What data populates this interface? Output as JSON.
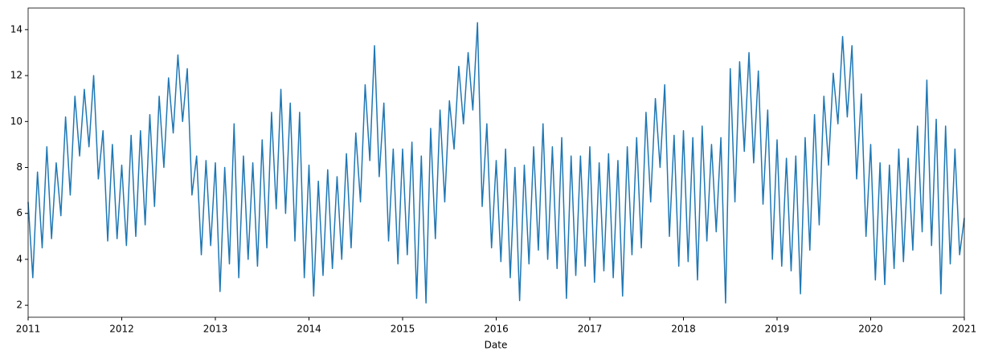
{
  "chart_data": {
    "type": "line",
    "x_label": "Date",
    "color": "#1f77b4",
    "x": [
      2011,
      2011.05,
      2011.1,
      2011.15,
      2011.2,
      2011.25,
      2011.3,
      2011.35,
      2011.4,
      2011.45,
      2011.5,
      2011.55,
      2011.6,
      2011.65,
      2011.7,
      2011.75,
      2011.8,
      2011.85,
      2011.9,
      2011.95,
      2012,
      2012.05,
      2012.1,
      2012.15,
      2012.2,
      2012.25,
      2012.3,
      2012.35,
      2012.4,
      2012.45,
      2012.5,
      2012.55,
      2012.6,
      2012.65,
      2012.7,
      2012.75,
      2012.8,
      2012.85,
      2012.9,
      2012.95,
      2013,
      2013.05,
      2013.1,
      2013.15,
      2013.2,
      2013.25,
      2013.3,
      2013.35,
      2013.4,
      2013.45,
      2013.5,
      2013.55,
      2013.6,
      2013.65,
      2013.7,
      2013.75,
      2013.8,
      2013.85,
      2013.9,
      2013.95,
      2014,
      2014.05,
      2014.1,
      2014.15,
      2014.2,
      2014.25,
      2014.3,
      2014.35,
      2014.4,
      2014.45,
      2014.5,
      2014.55,
      2014.6,
      2014.65,
      2014.7,
      2014.75,
      2014.8,
      2014.85,
      2014.9,
      2014.95,
      2015,
      2015.05,
      2015.1,
      2015.15,
      2015.2,
      2015.25,
      2015.3,
      2015.35,
      2015.4,
      2015.45,
      2015.5,
      2015.55,
      2015.6,
      2015.65,
      2015.7,
      2015.75,
      2015.8,
      2015.85,
      2015.9,
      2015.95,
      2016,
      2016.05,
      2016.1,
      2016.15,
      2016.2,
      2016.25,
      2016.3,
      2016.35,
      2016.4,
      2016.45,
      2016.5,
      2016.55,
      2016.6,
      2016.65,
      2016.7,
      2016.75,
      2016.8,
      2016.85,
      2016.9,
      2016.95,
      2017,
      2017.05,
      2017.1,
      2017.15,
      2017.2,
      2017.25,
      2017.3,
      2017.35,
      2017.4,
      2017.45,
      2017.5,
      2017.55,
      2017.6,
      2017.65,
      2017.7,
      2017.75,
      2017.8,
      2017.85,
      2017.9,
      2017.95,
      2018,
      2018.05,
      2018.1,
      2018.15,
      2018.2,
      2018.25,
      2018.3,
      2018.35,
      2018.4,
      2018.45,
      2018.5,
      2018.55,
      2018.6,
      2018.65,
      2018.7,
      2018.75,
      2018.8,
      2018.85,
      2018.9,
      2018.95,
      2019,
      2019.05,
      2019.1,
      2019.15,
      2019.2,
      2019.25,
      2019.3,
      2019.35,
      2019.4,
      2019.45,
      2019.5,
      2019.55,
      2019.6,
      2019.65,
      2019.7,
      2019.75,
      2019.8,
      2019.85,
      2019.9,
      2019.95,
      2020,
      2020.05,
      2020.1,
      2020.15,
      2020.2,
      2020.25,
      2020.3,
      2020.35,
      2020.4,
      2020.45,
      2020.5,
      2020.55,
      2020.6,
      2020.65,
      2020.7,
      2020.75,
      2020.8,
      2020.85,
      2020.9,
      2020.95,
      2021
    ],
    "values": [
      6.5,
      3.2,
      7.8,
      4.5,
      8.9,
      4.9,
      8.2,
      5.9,
      10.2,
      6.8,
      11.1,
      8.5,
      11.4,
      8.9,
      12.0,
      7.5,
      9.6,
      4.8,
      9.0,
      4.9,
      8.1,
      4.6,
      9.4,
      5.0,
      9.6,
      5.5,
      10.3,
      6.3,
      11.1,
      8.0,
      11.9,
      9.5,
      12.9,
      10.0,
      12.3,
      6.8,
      8.5,
      4.2,
      8.3,
      4.6,
      8.2,
      2.6,
      8.0,
      3.8,
      9.9,
      3.2,
      8.5,
      4.0,
      8.2,
      3.7,
      9.2,
      4.5,
      10.4,
      6.2,
      11.4,
      6.0,
      10.8,
      4.8,
      10.4,
      3.2,
      8.1,
      2.4,
      7.4,
      3.3,
      7.9,
      3.6,
      7.6,
      4.0,
      8.6,
      4.5,
      9.5,
      6.5,
      11.6,
      8.3,
      13.3,
      7.6,
      10.8,
      4.8,
      8.8,
      3.8,
      8.8,
      4.2,
      9.1,
      2.3,
      8.5,
      2.1,
      9.7,
      4.9,
      10.5,
      6.5,
      10.9,
      8.8,
      12.4,
      9.9,
      13.0,
      10.5,
      14.3,
      6.3,
      9.9,
      4.5,
      8.3,
      3.9,
      8.8,
      3.2,
      8.0,
      2.2,
      8.1,
      3.8,
      8.9,
      4.4,
      9.9,
      4.0,
      8.9,
      3.6,
      9.3,
      2.3,
      8.5,
      3.3,
      8.5,
      3.7,
      8.9,
      3.0,
      8.2,
      3.5,
      8.6,
      3.2,
      8.3,
      2.4,
      8.9,
      4.2,
      9.3,
      4.5,
      10.4,
      6.5,
      11.0,
      8.0,
      11.6,
      5.0,
      9.4,
      3.7,
      9.6,
      3.9,
      9.3,
      3.1,
      9.8,
      4.8,
      9.0,
      5.2,
      9.3,
      2.1,
      12.3,
      6.5,
      12.6,
      8.7,
      13.0,
      8.2,
      12.2,
      6.4,
      10.5,
      4.0,
      9.2,
      3.7,
      8.4,
      3.5,
      8.5,
      2.5,
      9.3,
      4.4,
      10.3,
      5.5,
      11.1,
      8.1,
      12.1,
      9.9,
      13.7,
      10.2,
      13.3,
      7.5,
      11.2,
      5.0,
      9.0,
      3.1,
      8.2,
      2.9,
      8.1,
      3.6,
      8.8,
      3.9,
      8.4,
      4.4,
      9.8,
      5.2,
      11.8,
      4.6,
      10.1,
      2.5,
      9.8,
      3.8,
      8.8,
      4.2,
      5.8
    ],
    "xlim": [
      2011,
      2021
    ],
    "xticks": [
      2011,
      2012,
      2013,
      2014,
      2015,
      2016,
      2017,
      2018,
      2019,
      2020,
      2021
    ],
    "ylim": [
      1.48,
      14.94
    ],
    "yticks": [
      2,
      4,
      6,
      8,
      10,
      12,
      14
    ]
  }
}
